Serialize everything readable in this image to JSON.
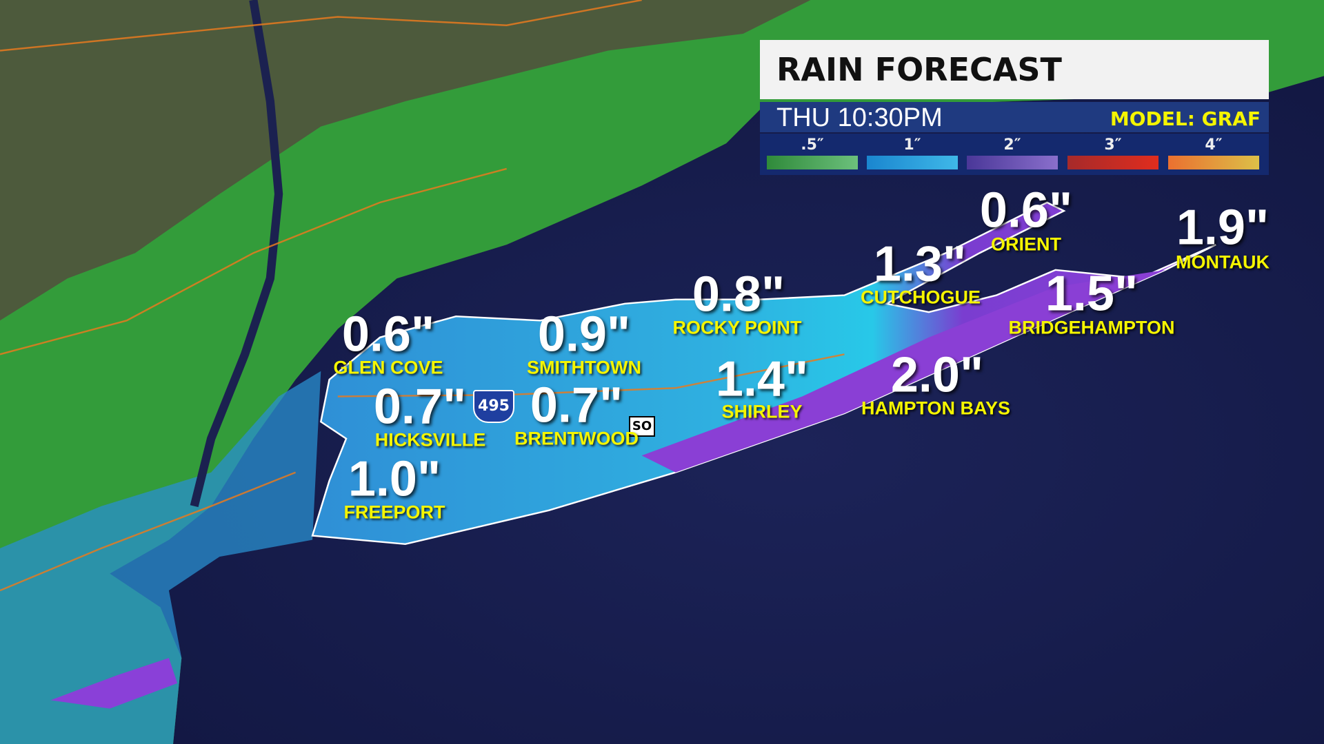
{
  "header": {
    "title": "RAIN FORECAST",
    "time": "THU  10:30PM",
    "model": "MODEL: GRAF"
  },
  "legend": [
    {
      "label": ".5″",
      "from": "#2f8a3a",
      "to": "#6cc07c"
    },
    {
      "label": "1″",
      "from": "#1a86cf",
      "to": "#3fb8e8"
    },
    {
      "label": "2″",
      "from": "#4a3798",
      "to": "#8a6fcc"
    },
    {
      "label": "3″",
      "from": "#a62a2a",
      "to": "#e02d1e"
    },
    {
      "label": "4″",
      "from": "#ea7030",
      "to": "#dcc048"
    }
  ],
  "locations": [
    {
      "amount": "0.6\"",
      "name": "GLEN COVE"
    },
    {
      "amount": "0.9\"",
      "name": "SMITHTOWN"
    },
    {
      "amount": "0.8\"",
      "name": "ROCKY POINT"
    },
    {
      "amount": "0.7\"",
      "name": "HICKSVILLE"
    },
    {
      "amount": "0.7\"",
      "name": "BRENTWOOD"
    },
    {
      "amount": "1.0\"",
      "name": "FREEPORT"
    },
    {
      "amount": "1.4\"",
      "name": "SHIRLEY"
    },
    {
      "amount": "2.0\"",
      "name": "HAMPTON BAYS"
    },
    {
      "amount": "1.3\"",
      "name": "CUTCHOGUE"
    },
    {
      "amount": "0.6\"",
      "name": "ORIENT"
    },
    {
      "amount": "1.5\"",
      "name": "BRIDGEHAMPTON"
    },
    {
      "amount": "1.9\"",
      "name": "MONTAUK"
    }
  ],
  "shields": {
    "interstate": "495",
    "state": "SO"
  },
  "colors": {
    "ocean": "#141a4a",
    "land": "#4d5a3c",
    "rain_green": "#2fa83a"
  }
}
